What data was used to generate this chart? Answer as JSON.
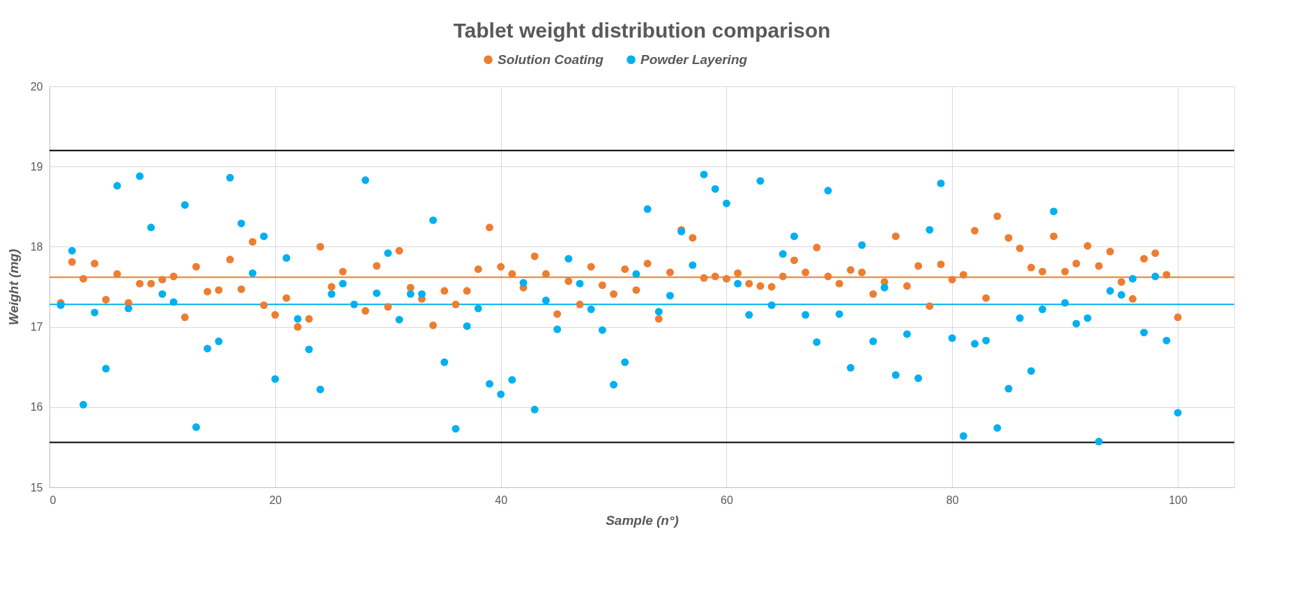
{
  "chart_data": {
    "type": "scatter",
    "title": "Tablet weight distribution comparison",
    "xlabel": "Sample (n°)",
    "ylabel": "Weight (mg)",
    "x": [
      1,
      2,
      3,
      4,
      5,
      6,
      7,
      8,
      9,
      10,
      11,
      12,
      13,
      14,
      15,
      16,
      17,
      18,
      19,
      20,
      21,
      22,
      23,
      24,
      25,
      26,
      27,
      28,
      29,
      30,
      31,
      32,
      33,
      34,
      35,
      36,
      37,
      38,
      39,
      40,
      41,
      42,
      43,
      44,
      45,
      46,
      47,
      48,
      49,
      50,
      51,
      52,
      53,
      54,
      55,
      56,
      57,
      58,
      59,
      60,
      61,
      62,
      63,
      64,
      65,
      66,
      67,
      68,
      69,
      70,
      71,
      72,
      73,
      74,
      75,
      76,
      77,
      78,
      79,
      80,
      81,
      82,
      83,
      84,
      85,
      86,
      87,
      88,
      89,
      90,
      91,
      92,
      93,
      94,
      95,
      96,
      97,
      98,
      99,
      100
    ],
    "series": [
      {
        "name": "Solution Coating",
        "color": "#ed7d31",
        "values": [
          17.3,
          17.81,
          17.6,
          17.79,
          17.34,
          17.66,
          17.3,
          17.54,
          17.54,
          17.59,
          17.63,
          17.12,
          17.75,
          17.44,
          17.46,
          17.84,
          17.47,
          18.06,
          17.27,
          17.15,
          17.36,
          17.0,
          17.1,
          18.0,
          17.5,
          17.69,
          null,
          17.2,
          17.76,
          17.25,
          17.95,
          17.49,
          17.35,
          17.02,
          17.45,
          17.28,
          17.45,
          17.72,
          18.24,
          17.75,
          17.66,
          17.49,
          17.88,
          17.66,
          17.16,
          17.57,
          17.28,
          17.75,
          17.52,
          17.41,
          17.72,
          17.46,
          17.79,
          17.1,
          17.68,
          18.21,
          18.11,
          17.61,
          17.63,
          17.6,
          17.67,
          17.54,
          17.51,
          17.5,
          17.63,
          17.83,
          17.68,
          17.99,
          17.63,
          17.54,
          17.71,
          17.68,
          17.41,
          17.56,
          18.13,
          17.51,
          17.76,
          17.26,
          17.78,
          17.59,
          17.65,
          18.2,
          17.36,
          18.38,
          18.11,
          17.98,
          17.74,
          17.69,
          18.13,
          17.69,
          17.79,
          18.01,
          17.76,
          17.94,
          17.56,
          17.35,
          17.85,
          17.92,
          17.65,
          17.12
        ]
      },
      {
        "name": "Powder Layering",
        "color": "#00b0f0",
        "values": [
          17.27,
          17.95,
          16.03,
          17.18,
          16.48,
          18.76,
          17.23,
          18.88,
          18.24,
          17.41,
          17.31,
          18.52,
          15.75,
          16.73,
          16.82,
          18.86,
          18.29,
          17.67,
          18.13,
          16.35,
          17.86,
          17.1,
          16.72,
          16.22,
          17.41,
          17.54,
          17.28,
          18.83,
          17.42,
          17.92,
          17.09,
          17.41,
          17.41,
          18.33,
          16.56,
          15.73,
          17.01,
          17.23,
          16.29,
          16.16,
          16.34,
          17.55,
          15.97,
          17.33,
          16.97,
          17.85,
          17.54,
          17.22,
          16.96,
          16.28,
          16.56,
          17.66,
          18.47,
          17.19,
          17.39,
          18.19,
          17.77,
          18.9,
          18.72,
          18.54,
          17.54,
          17.15,
          18.82,
          17.27,
          17.91,
          18.13,
          17.15,
          16.81,
          18.7,
          17.16,
          16.49,
          18.02,
          16.82,
          17.49,
          16.4,
          16.91,
          16.36,
          18.21,
          18.79,
          16.86,
          15.64,
          16.79,
          16.83,
          15.74,
          16.23,
          17.11,
          16.45,
          17.22,
          18.44,
          17.3,
          17.04,
          17.11,
          15.57,
          17.45,
          17.4,
          17.6,
          16.93,
          17.63,
          16.83,
          15.93
        ]
      }
    ],
    "ref_lines": [
      {
        "axis": "y",
        "value": 19.2,
        "color": "#000000"
      },
      {
        "axis": "y",
        "value": 15.56,
        "color": "#000000"
      },
      {
        "axis": "y",
        "value": 17.62,
        "color": "#ed7d31"
      },
      {
        "axis": "y",
        "value": 17.28,
        "color": "#00b0f0"
      }
    ],
    "xlim": [
      0,
      105
    ],
    "xticks": [
      0,
      20,
      40,
      60,
      80,
      100
    ],
    "ylim": [
      15,
      20
    ],
    "yticks": [
      15,
      16,
      17,
      18,
      19,
      20
    ],
    "grid": true,
    "legend": "top",
    "marker": "circle"
  }
}
